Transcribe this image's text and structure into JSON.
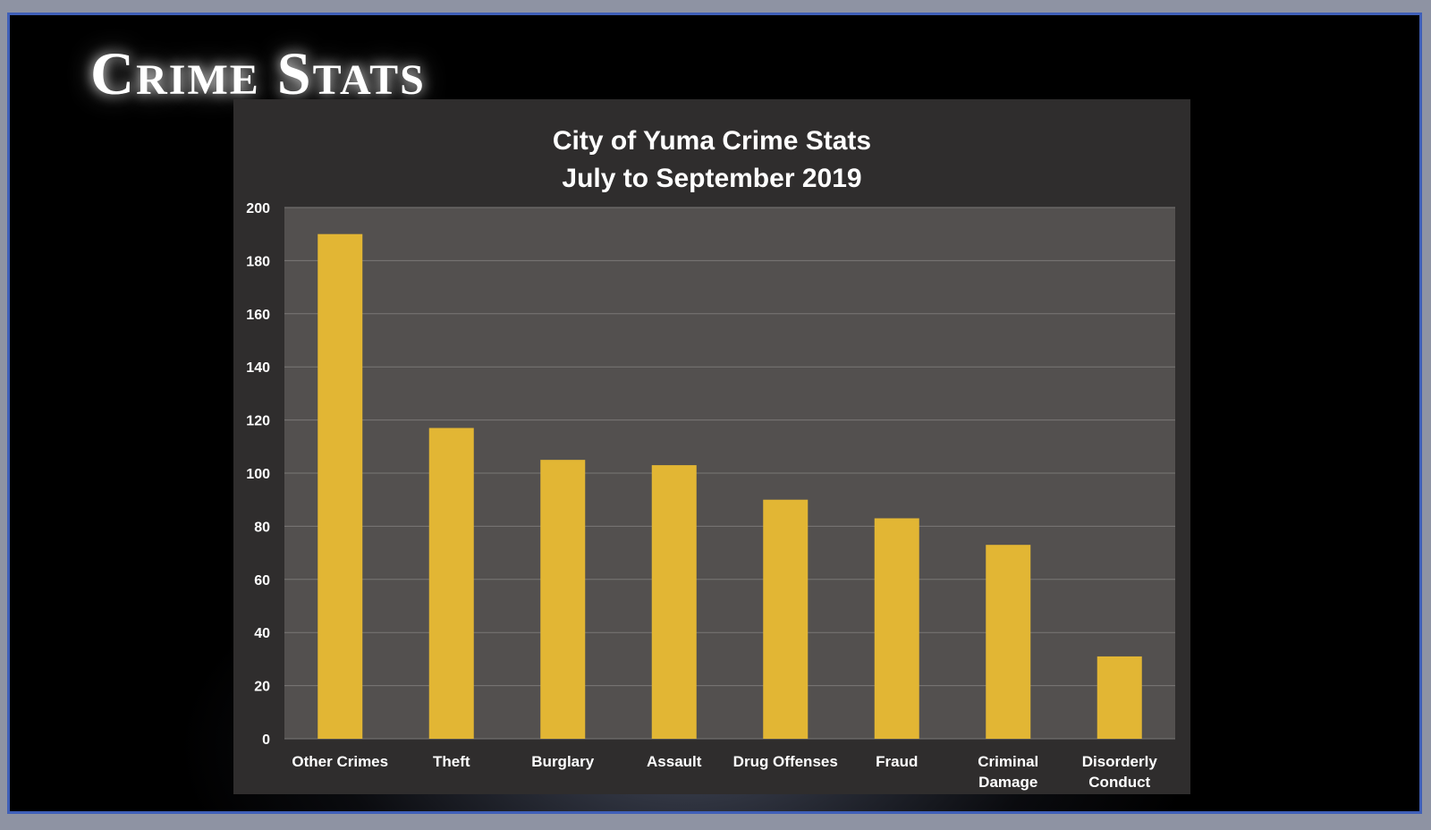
{
  "slide": {
    "title": "Crime Stats"
  },
  "chart_data": {
    "type": "bar",
    "title": "City of Yuma Crime Stats",
    "subtitle": "July to September 2019",
    "categories": [
      "Other Crimes",
      "Theft",
      "Burglary",
      "Assault",
      "Drug Offenses",
      "Fraud",
      "Criminal Damage",
      "Disorderly Conduct"
    ],
    "category_lines": [
      [
        "Other Crimes"
      ],
      [
        "Theft"
      ],
      [
        "Burglary"
      ],
      [
        "Assault"
      ],
      [
        "Drug Offenses"
      ],
      [
        "Fraud"
      ],
      [
        "Criminal",
        "Damage"
      ],
      [
        "Disorderly",
        "Conduct"
      ]
    ],
    "values": [
      190,
      117,
      105,
      103,
      90,
      83,
      73,
      31
    ],
    "ylim": [
      0,
      200
    ],
    "yticks": [
      0,
      20,
      40,
      60,
      80,
      100,
      120,
      140,
      160,
      180,
      200
    ],
    "xlabel": "",
    "ylabel": "",
    "grid": true,
    "legend": "none",
    "colors": {
      "bar": "#e2b634",
      "plot_background": "#53504f",
      "panel_background": "#2f2d2d",
      "gridline": "#7a7776",
      "text": "#ffffff"
    }
  }
}
